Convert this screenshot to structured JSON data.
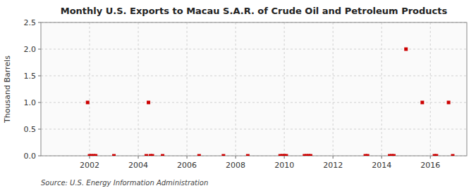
{
  "chart_data": {
    "type": "scatter",
    "title": "Monthly U.S. Exports to Macau S.A.R. of Crude Oil and Petroleum Products",
    "ylabel": "Thousand Barrels",
    "source": "Source: U.S. Energy Information Administration",
    "color": "#cc0000",
    "marker": "square",
    "grid": true,
    "xlim": [
      2000.0,
      2017.5
    ],
    "xticks": [
      2002,
      2004,
      2006,
      2008,
      2010,
      2012,
      2014,
      2016
    ],
    "ylim": [
      0,
      2.5
    ],
    "yticks": [
      {
        "value": 0.0,
        "label": "0.0"
      },
      0.5,
      {
        "value": 1.0,
        "label": "1.0"
      },
      1.5,
      {
        "value": 2.0,
        "label": "2.0"
      },
      2.5
    ],
    "x": [
      2001.92,
      2002.0,
      2002.08,
      2002.17,
      2002.25,
      2003.0,
      2004.33,
      2004.42,
      2004.5,
      2004.58,
      2005.0,
      2006.5,
      2007.5,
      2008.5,
      2009.83,
      2009.92,
      2010.0,
      2010.08,
      2010.83,
      2010.92,
      2011.0,
      2011.08,
      2013.33,
      2013.42,
      2014.33,
      2014.42,
      2014.5,
      2015.0,
      2015.67,
      2016.17,
      2016.25,
      2016.75,
      2016.92
    ],
    "values": [
      1.0,
      0.0,
      0.0,
      0.0,
      0.0,
      0.0,
      0.0,
      1.0,
      0.0,
      0.0,
      0.0,
      0.0,
      0.0,
      0.0,
      0.0,
      0.0,
      0.0,
      0.0,
      0.0,
      0.0,
      0.0,
      0.0,
      0.0,
      0.0,
      0.0,
      0.0,
      0.0,
      2.0,
      1.0,
      0.0,
      0.0,
      1.0,
      0.0
    ]
  }
}
